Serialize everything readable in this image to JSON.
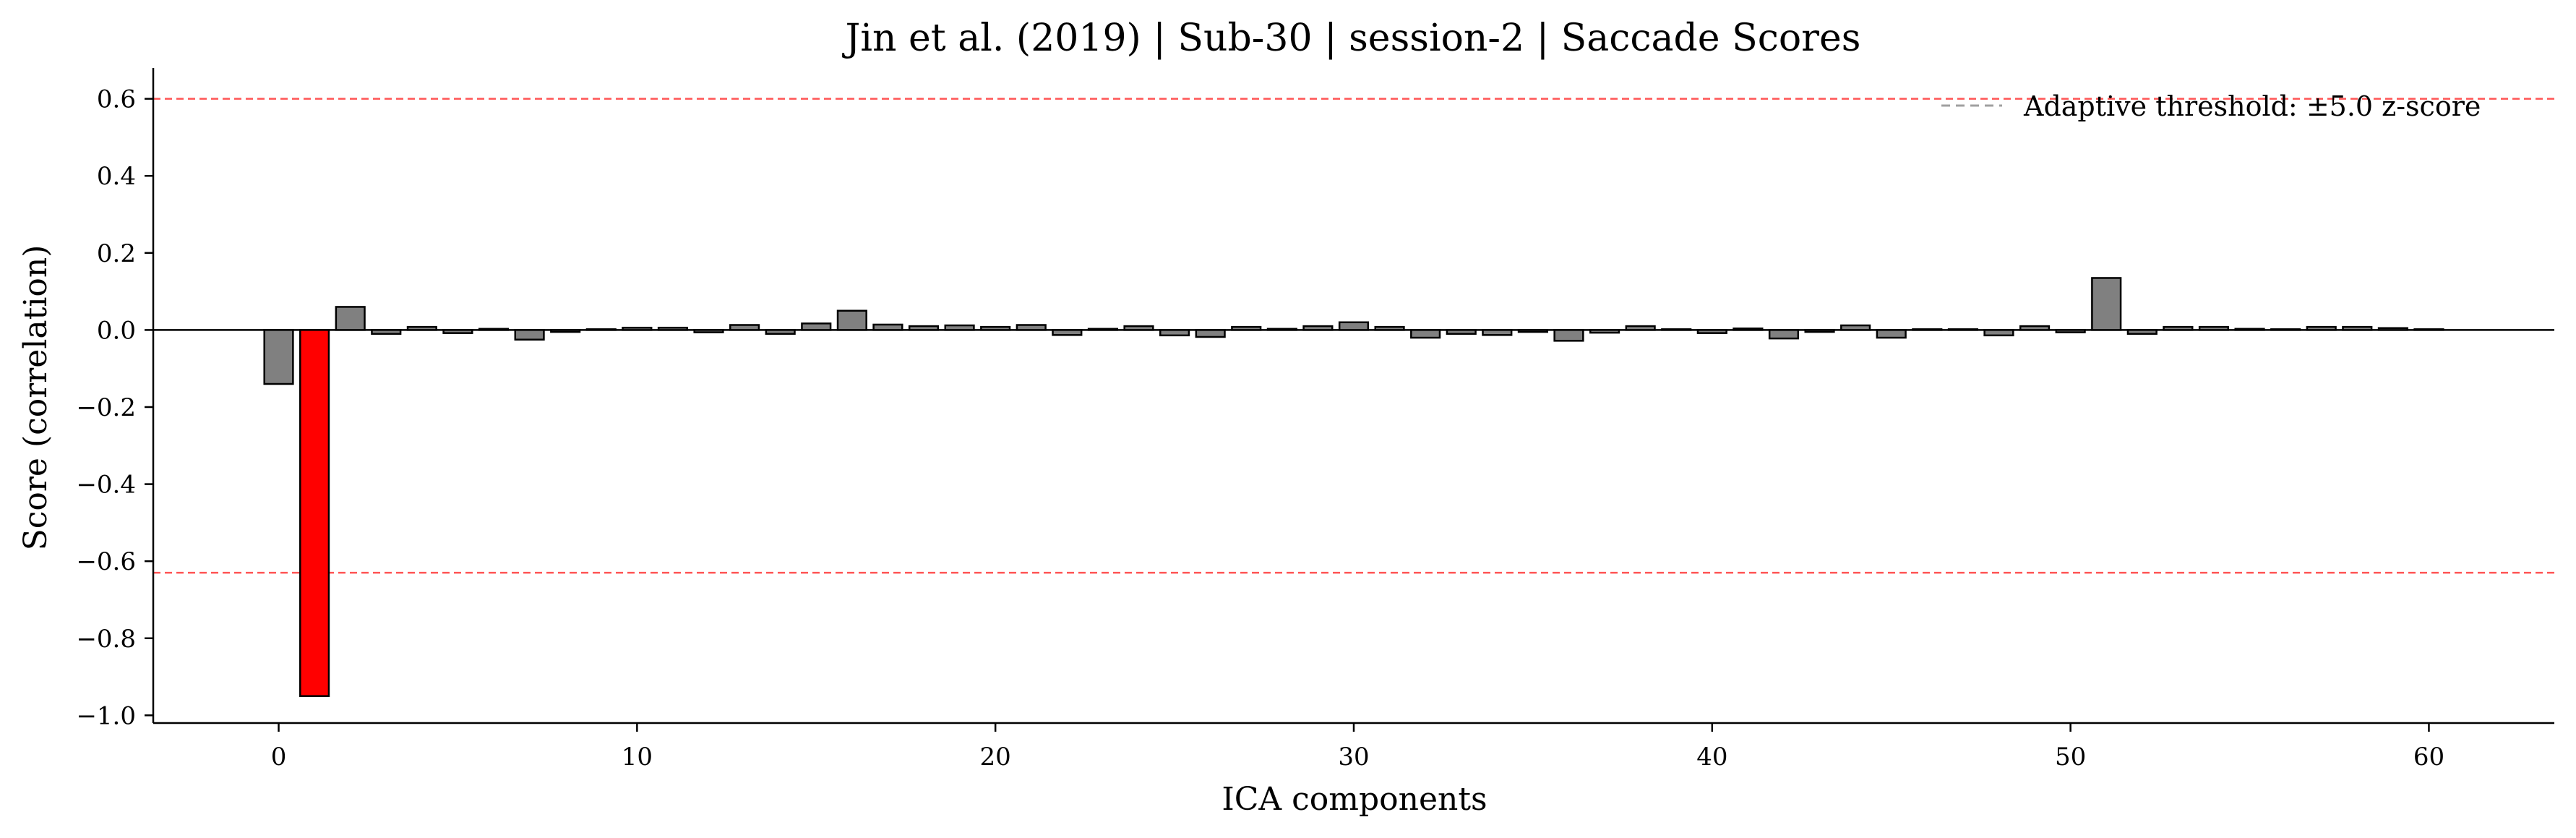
{
  "chart_data": {
    "type": "bar",
    "title": "Jin et al. (2019) | Sub-30 | session-2 | Saccade Scores",
    "xlabel": "ICA components",
    "ylabel": "Score (correlation)",
    "xlim": [
      -3.5,
      63.5
    ],
    "ylim": [
      -1.02,
      0.68
    ],
    "xticks": [
      0,
      10,
      20,
      30,
      40,
      50,
      60
    ],
    "yticks": [
      0.6,
      0.4,
      0.2,
      0.0,
      -0.2,
      -0.4,
      -0.6,
      -0.8,
      -1.0
    ],
    "ytick_labels": [
      "0.6",
      "0.4",
      "0.2",
      "0.0",
      "−0.2",
      "−0.4",
      "−0.6",
      "−0.8",
      "−1.0"
    ],
    "x": [
      0,
      1,
      2,
      3,
      4,
      5,
      6,
      7,
      8,
      9,
      10,
      11,
      12,
      13,
      14,
      15,
      16,
      17,
      18,
      19,
      20,
      21,
      22,
      23,
      24,
      25,
      26,
      27,
      28,
      29,
      30,
      31,
      32,
      33,
      34,
      35,
      36,
      37,
      38,
      39,
      40,
      41,
      42,
      43,
      44,
      45,
      46,
      47,
      48,
      49,
      50,
      51,
      52,
      53,
      54,
      55,
      56,
      57,
      58,
      59,
      60
    ],
    "values": [
      -0.14,
      -0.95,
      0.06,
      -0.01,
      0.008,
      -0.008,
      0.003,
      -0.025,
      -0.005,
      0.002,
      0.006,
      0.006,
      -0.006,
      0.013,
      -0.01,
      0.017,
      0.05,
      0.014,
      0.01,
      0.012,
      0.008,
      0.013,
      -0.013,
      0.003,
      0.01,
      -0.014,
      -0.018,
      0.008,
      0.003,
      0.01,
      0.02,
      0.008,
      -0.02,
      -0.01,
      -0.013,
      -0.005,
      -0.028,
      -0.007,
      0.01,
      0.002,
      -0.008,
      0.004,
      -0.022,
      -0.005,
      0.012,
      -0.02,
      0.002,
      0.002,
      -0.014,
      0.01,
      -0.006,
      0.135,
      -0.01,
      0.008,
      0.008,
      0.003,
      0.002,
      0.008,
      0.008,
      0.005,
      0.002
    ],
    "highlighted_index": 1,
    "bar_color": "#808080",
    "highlight_color": "#ff0000",
    "bar_edge_color": "#000000",
    "thresholds": [
      0.6,
      -0.63
    ],
    "threshold_color": "#ff5555",
    "grid": false,
    "legend": {
      "placement": "top-right",
      "entries": [
        "Adaptive threshold: ±5.0 z-score"
      ],
      "line_color": "#a0a0a0"
    }
  }
}
